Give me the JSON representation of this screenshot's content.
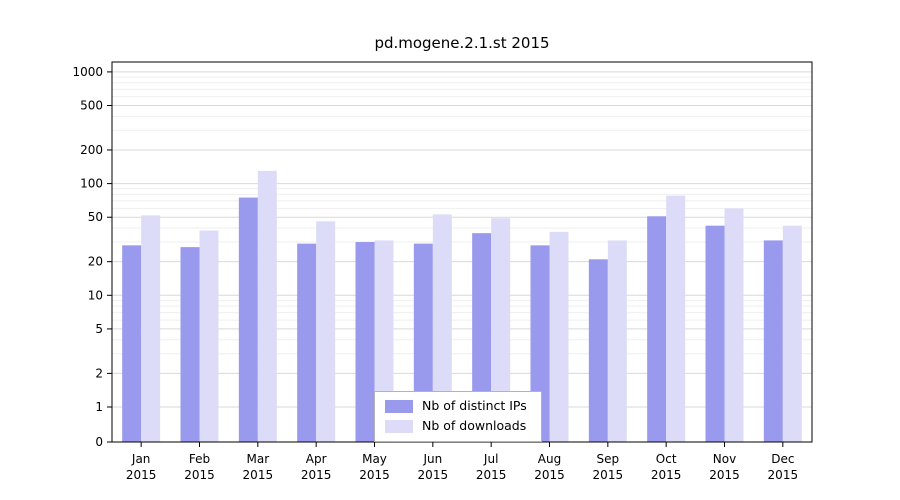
{
  "chart_data": {
    "type": "bar",
    "title": "pd.mogene.2.1.st 2015",
    "scale": "symlog",
    "grid": true,
    "legend_position": "bottom-center",
    "categories": [
      "Jan",
      "Feb",
      "Mar",
      "Apr",
      "May",
      "Jun",
      "Jul",
      "Aug",
      "Sep",
      "Oct",
      "Nov",
      "Dec"
    ],
    "x_year": "2015",
    "yticks": [
      0,
      1,
      2,
      5,
      10,
      20,
      50,
      100,
      200,
      500,
      1000
    ],
    "ylim": [
      0,
      1250
    ],
    "series": [
      {
        "name": "Nb of distinct IPs",
        "color": "#9999ed",
        "values": [
          28,
          27,
          75,
          29,
          30,
          29,
          36,
          28,
          21,
          51,
          42,
          31
        ]
      },
      {
        "name": "Nb of downloads",
        "color": "#dcdcf8",
        "values": [
          52,
          38,
          130,
          46,
          31,
          53,
          49,
          37,
          31,
          78,
          60,
          42
        ]
      }
    ]
  }
}
